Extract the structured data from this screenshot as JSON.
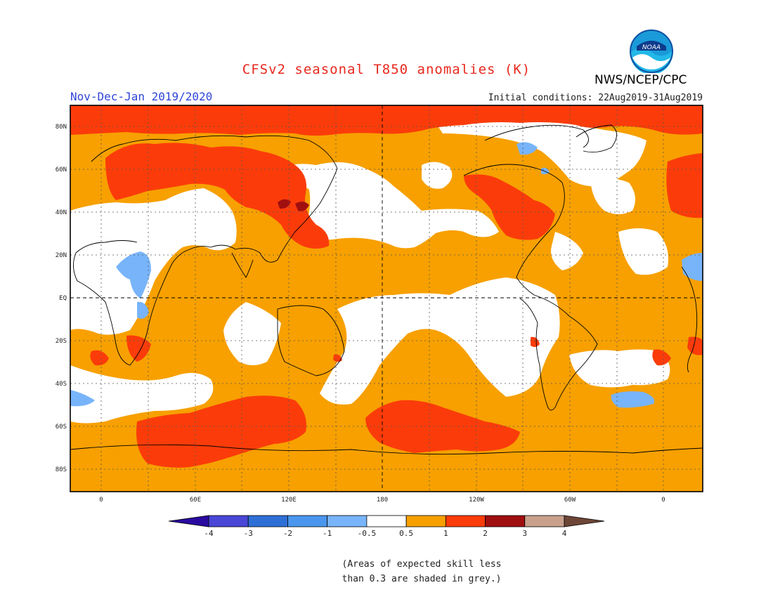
{
  "title": "CFSv2 seasonal T850 anomalies (K)",
  "subtitle_left": "Nov-Dec-Jan 2019/2020",
  "subtitle_right": "Initial conditions: 22Aug2019-31Aug2019",
  "agency": "NWS/NCEP/CPC",
  "logo_text": "NOAA",
  "note_line1": "(Areas of expected skill less",
  "note_line2": "than 0.3 are shaded in grey.)",
  "map": {
    "lat_labels": [
      "80N",
      "60N",
      "40N",
      "20N",
      "EQ",
      "20S",
      "40S",
      "60S",
      "80S"
    ],
    "lon_labels": [
      "0",
      "60E",
      "120E",
      "180",
      "120W",
      "60W",
      "0"
    ],
    "colors": {
      "anom_0_5_to_1": "#f7a000",
      "anom_1_to_2": "#fb3c0a",
      "anom_2_to_3": "#a00f10",
      "anom_neg_0_5_to_neg_1": "#78b4fa",
      "anom_neg_1_to_neg_2": "#4a96ee"
    }
  },
  "colorbar": {
    "labels": [
      "-4",
      "-3",
      "-2",
      "-1",
      "-0.5",
      "0.5",
      "1",
      "2",
      "3",
      "4"
    ],
    "colors": [
      "#2a0aa0",
      "#4a46d6",
      "#2e6fd6",
      "#4a96ee",
      "#78b4fa",
      "#ffffff",
      "#f7a000",
      "#fb3c0a",
      "#a00f10",
      "#c8a08c",
      "#6e4637"
    ]
  }
}
